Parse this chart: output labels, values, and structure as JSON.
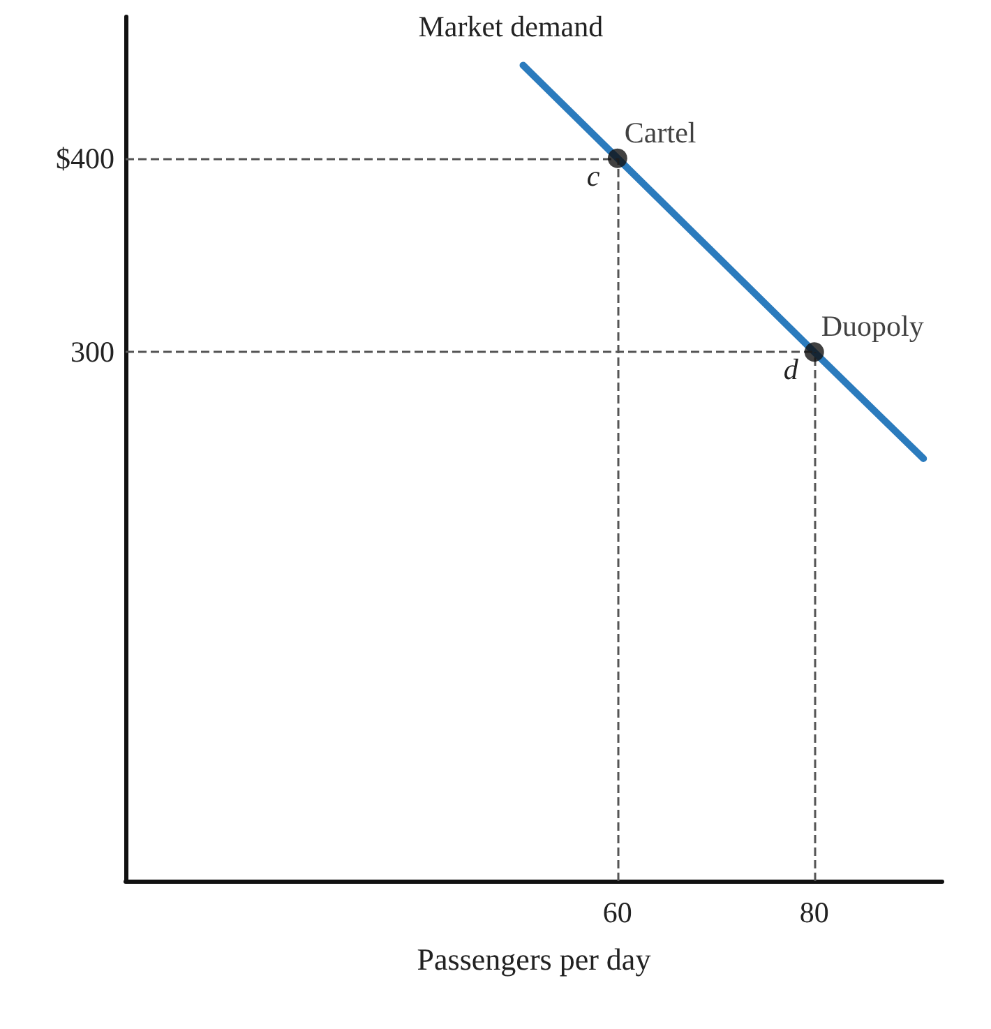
{
  "chart_data": {
    "type": "line",
    "xlabel": "Passengers per day",
    "xlim": [
      10,
      93
    ],
    "ylim": [
      27,
      473
    ],
    "xticks": [
      60,
      80
    ],
    "yticks": [
      {
        "value": 400,
        "label": "$400"
      },
      300
    ],
    "grid": false,
    "series": [
      {
        "color": "#2b7bbd",
        "x": [
          50.4,
          60,
          80,
          91.1
        ],
        "values": [
          448,
          400,
          300,
          245
        ],
        "marker": "none"
      },
      {
        "type": "scatter",
        "color": "#111111",
        "x": [
          60,
          80
        ],
        "values": [
          400,
          300
        ],
        "value_labels": [
          "Cartel",
          "Duopoly"
        ],
        "marker": "circle"
      }
    ],
    "ref_lines": [
      {
        "axis": "y",
        "value": 400,
        "line_style": "dashed",
        "color": "#555555"
      },
      {
        "axis": "y",
        "value": 300,
        "line_style": "dashed",
        "color": "#555555"
      },
      {
        "axis": "x",
        "value": 60,
        "line_style": "dashed",
        "color": "#555555"
      },
      {
        "axis": "x",
        "value": 80,
        "line_style": "dashed",
        "color": "#555555"
      }
    ],
    "annotations": [
      {
        "text": "Market demand",
        "x": 50.4,
        "y": 448
      },
      {
        "text": "c",
        "x": 60,
        "y": 400
      },
      {
        "text": "d",
        "x": 80,
        "y": 300
      }
    ]
  }
}
